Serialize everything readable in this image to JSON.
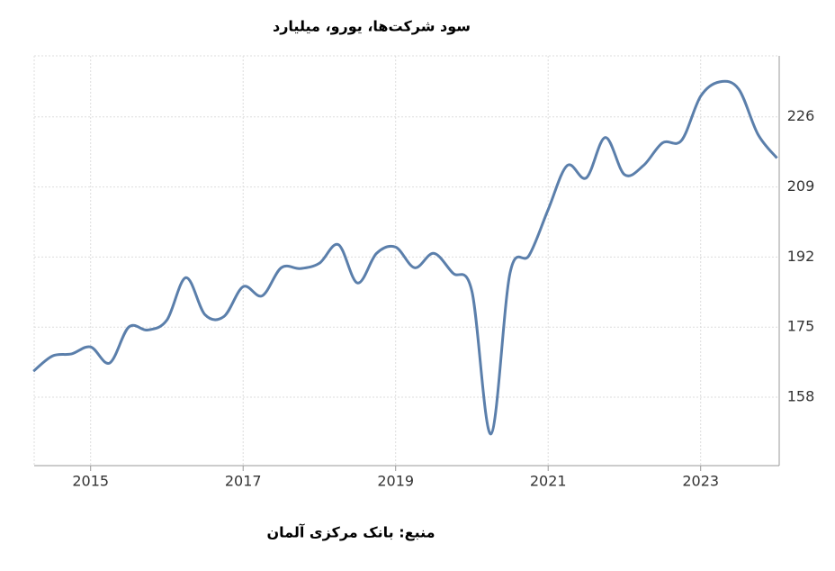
{
  "chart_data": {
    "type": "line",
    "title": "سود شرکت‌ها، یورو، میلیارد",
    "source": "منبع: بانک مرکزی آلمان",
    "x": [
      2014.25,
      2014.5,
      2014.75,
      2015,
      2015.25,
      2015.5,
      2015.75,
      2016,
      2016.25,
      2016.5,
      2016.75,
      2017,
      2017.25,
      2017.5,
      2017.75,
      2018,
      2018.25,
      2018.5,
      2018.75,
      2019,
      2019.25,
      2019.5,
      2019.75,
      2020,
      2020.25,
      2020.5,
      2020.75,
      2021,
      2021.25,
      2021.5,
      2021.75,
      2022,
      2022.25,
      2022.5,
      2022.75,
      2023,
      2023.25,
      2023.5,
      2023.75,
      2024
    ],
    "series": [
      {
        "color": "#5b7fab",
        "values": [
          164.3,
          168.0,
          168.5,
          170.2,
          166.3,
          175.0,
          174.3,
          176.7,
          187.0,
          178.0,
          177.6,
          184.8,
          182.6,
          189.4,
          189.2,
          190.5,
          195.0,
          185.7,
          192.9,
          194.4,
          189.4,
          192.9,
          188.1,
          183.7,
          149.1,
          188.1,
          192.4,
          203.5,
          214.2,
          211.2,
          221.0,
          212.0,
          214.2,
          219.7,
          220.3,
          231.0,
          234.5,
          232.7,
          221.8,
          216.0
        ]
      }
    ],
    "xlim": [
      2014.26,
      2024.03
    ],
    "xticks": [
      2015,
      2017,
      2019,
      2021,
      2023
    ],
    "ylim": [
      141.4,
      240.8
    ],
    "yticks": [
      158,
      175,
      192,
      209,
      226
    ],
    "grid": true
  }
}
